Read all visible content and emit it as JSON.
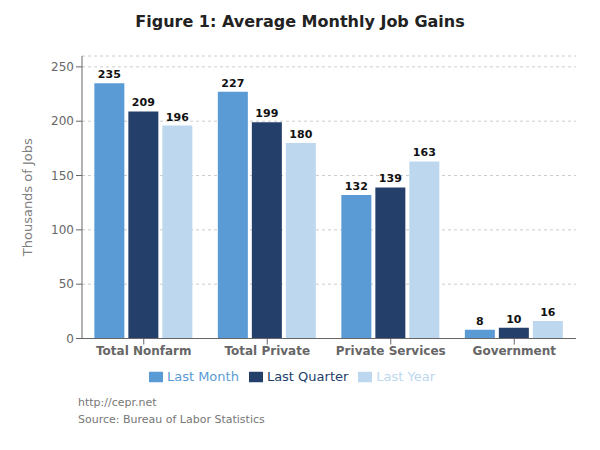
{
  "chart_data": {
    "type": "bar",
    "title": "Figure 1: Average Monthly Job Gains",
    "categories": [
      "Total Nonfarm",
      "Total Private",
      "Private Services",
      "Government"
    ],
    "series": [
      {
        "name": "Last Month",
        "color": "#5b9bd5",
        "values": [
          235,
          227,
          132,
          8
        ]
      },
      {
        "name": "Last Quarter",
        "color": "#243f6a",
        "values": [
          209,
          199,
          139,
          10
        ]
      },
      {
        "name": "Last Year",
        "color": "#bdd7ee",
        "values": [
          196,
          180,
          163,
          16
        ]
      }
    ],
    "ylabel": "Thousands of Jobs",
    "ylim": [
      0,
      260
    ],
    "yticks": [
      0,
      50,
      100,
      150,
      200,
      250
    ],
    "grid": true,
    "legend": "bottom",
    "data_labels": true,
    "annotations": [
      "http://cepr.net",
      "Source: Bureau of Labor Statistics"
    ]
  }
}
